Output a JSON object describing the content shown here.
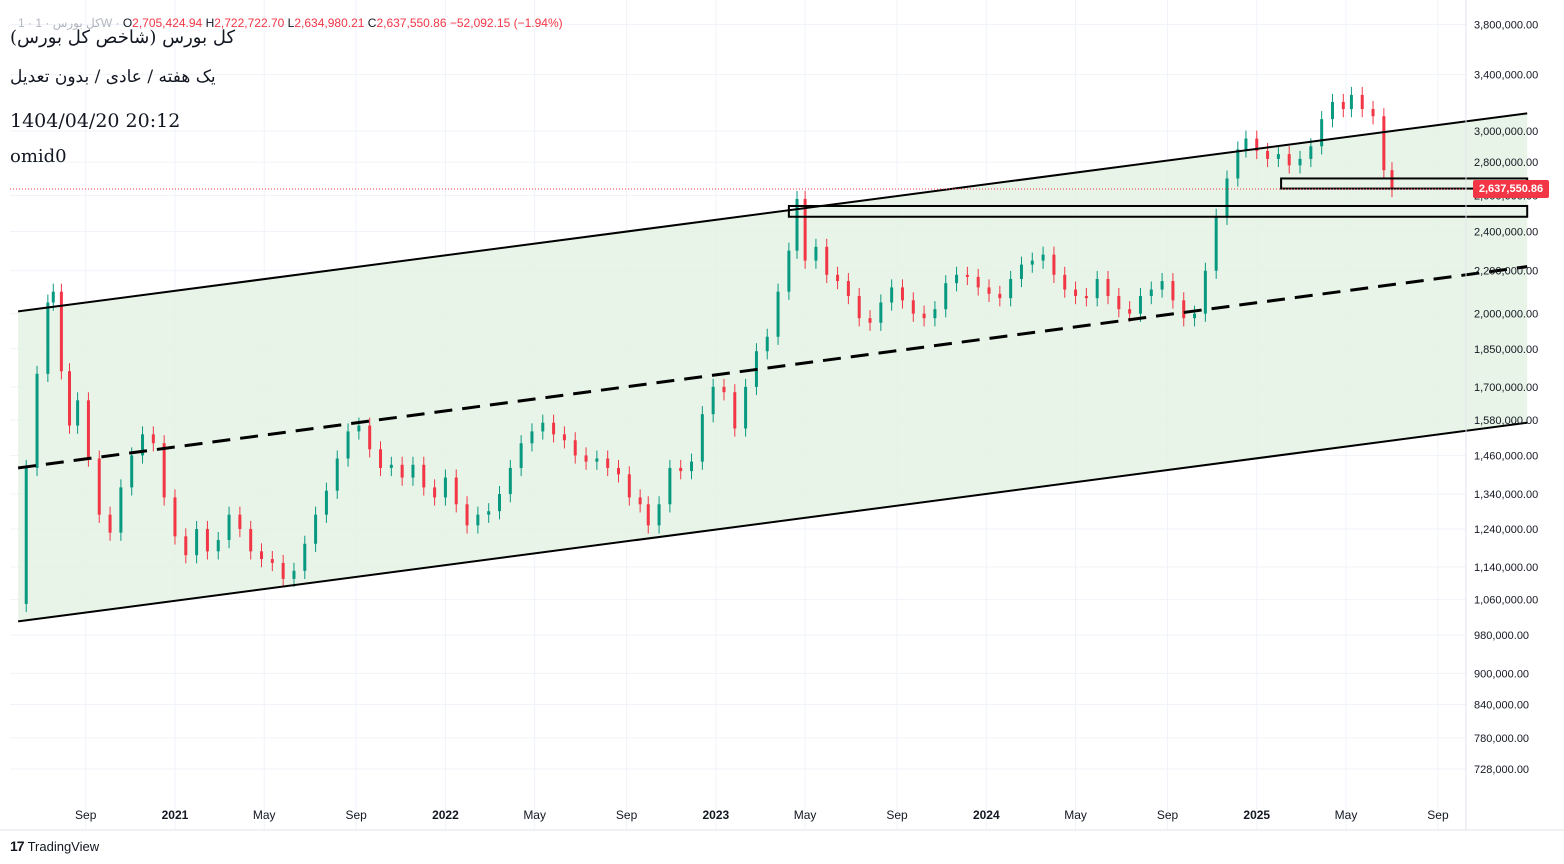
{
  "header": {
    "symbol_prefix": "1 · کل بورس · 1W ·",
    "o_label": "O",
    "o_value": "2,705,424.94",
    "h_label": "H",
    "h_value": "2,722,722.70",
    "l_label": "L",
    "l_value": "2,634,980.21",
    "c_label": "C",
    "c_value": "2,637,550.86",
    "change": "−52,092.15 (−1.94%)"
  },
  "legend": {
    "title": "کل بورس (شاخص کل بورس)",
    "subtitle": "یک هفته / عادی / بدون تعدیل",
    "datetime": "1404/04/20 20:12",
    "author": "omid0"
  },
  "brand": {
    "name": "TradingView",
    "mark": "17"
  },
  "colors": {
    "up": "#089981",
    "down": "#f23645",
    "channel_fill": "#e3f2e3",
    "line": "#000000",
    "grid": "#f0f3fa",
    "text": "#131722"
  },
  "chart_data": {
    "type": "candlestick",
    "timeframe": "1W",
    "last_price": 2637550.86,
    "last_price_label": "2,637,550.86",
    "y_scale": "log",
    "y_ticks": [
      {
        "v": 3800000,
        "label": "3,800,000.00"
      },
      {
        "v": 3400000,
        "label": "3,400,000.00"
      },
      {
        "v": 3000000,
        "label": "3,000,000.00"
      },
      {
        "v": 2800000,
        "label": "2,800,000.00"
      },
      {
        "v": 2600000,
        "label": "2,600,000.00"
      },
      {
        "v": 2400000,
        "label": "2,400,000.00"
      },
      {
        "v": 2200000,
        "label": "2,200,000.00"
      },
      {
        "v": 2000000,
        "label": "2,000,000.00"
      },
      {
        "v": 1850000,
        "label": "1,850,000.00"
      },
      {
        "v": 1700000,
        "label": "1,700,000.00"
      },
      {
        "v": 1580000,
        "label": "1,580,000.00"
      },
      {
        "v": 1460000,
        "label": "1,460,000.00"
      },
      {
        "v": 1340000,
        "label": "1,340,000.00"
      },
      {
        "v": 1240000,
        "label": "1,240,000.00"
      },
      {
        "v": 1140000,
        "label": "1,140,000.00"
      },
      {
        "v": 1060000,
        "label": "1,060,000.00"
      },
      {
        "v": 980000,
        "label": "980,000.00"
      },
      {
        "v": 900000,
        "label": "900,000.00"
      },
      {
        "v": 840000,
        "label": "840,000.00"
      },
      {
        "v": 780000,
        "label": "780,000.00"
      },
      {
        "v": 728000,
        "label": "728,000.00"
      }
    ],
    "x_ticks": [
      {
        "t": 2020.67,
        "label": "Sep",
        "bold": false
      },
      {
        "t": 2021.0,
        "label": "2021",
        "bold": true
      },
      {
        "t": 2021.33,
        "label": "May",
        "bold": false
      },
      {
        "t": 2021.67,
        "label": "Sep",
        "bold": false
      },
      {
        "t": 2022.0,
        "label": "2022",
        "bold": true
      },
      {
        "t": 2022.33,
        "label": "May",
        "bold": false
      },
      {
        "t": 2022.67,
        "label": "Sep",
        "bold": false
      },
      {
        "t": 2023.0,
        "label": "2023",
        "bold": true
      },
      {
        "t": 2023.33,
        "label": "May",
        "bold": false
      },
      {
        "t": 2023.67,
        "label": "Sep",
        "bold": false
      },
      {
        "t": 2024.0,
        "label": "2024",
        "bold": true
      },
      {
        "t": 2024.33,
        "label": "May",
        "bold": false
      },
      {
        "t": 2024.67,
        "label": "Sep",
        "bold": false
      },
      {
        "t": 2025.0,
        "label": "2025",
        "bold": true
      },
      {
        "t": 2025.33,
        "label": "May",
        "bold": false
      },
      {
        "t": 2025.67,
        "label": "Sep",
        "bold": false
      }
    ],
    "x_range": [
      2020.39,
      2026.0
    ],
    "closes": [
      [
        2020.4,
        1050000
      ],
      [
        2020.45,
        1420000
      ],
      [
        2020.49,
        1750000
      ],
      [
        2020.53,
        2050000
      ],
      [
        2020.55,
        2100000
      ],
      [
        2020.58,
        1760000
      ],
      [
        2020.61,
        1560000
      ],
      [
        2020.64,
        1650000
      ],
      [
        2020.68,
        1450000
      ],
      [
        2020.72,
        1280000
      ],
      [
        2020.76,
        1230000
      ],
      [
        2020.8,
        1360000
      ],
      [
        2020.84,
        1460000
      ],
      [
        2020.88,
        1530000
      ],
      [
        2020.92,
        1500000
      ],
      [
        2020.96,
        1330000
      ],
      [
        2021.0,
        1220000
      ],
      [
        2021.04,
        1170000
      ],
      [
        2021.08,
        1240000
      ],
      [
        2021.12,
        1180000
      ],
      [
        2021.16,
        1210000
      ],
      [
        2021.2,
        1280000
      ],
      [
        2021.24,
        1240000
      ],
      [
        2021.28,
        1180000
      ],
      [
        2021.32,
        1160000
      ],
      [
        2021.36,
        1150000
      ],
      [
        2021.4,
        1110000
      ],
      [
        2021.44,
        1130000
      ],
      [
        2021.48,
        1200000
      ],
      [
        2021.52,
        1280000
      ],
      [
        2021.56,
        1350000
      ],
      [
        2021.6,
        1450000
      ],
      [
        2021.64,
        1540000
      ],
      [
        2021.68,
        1560000
      ],
      [
        2021.72,
        1480000
      ],
      [
        2021.76,
        1420000
      ],
      [
        2021.8,
        1430000
      ],
      [
        2021.84,
        1390000
      ],
      [
        2021.88,
        1430000
      ],
      [
        2021.92,
        1360000
      ],
      [
        2021.96,
        1330000
      ],
      [
        2022.0,
        1390000
      ],
      [
        2022.04,
        1310000
      ],
      [
        2022.08,
        1250000
      ],
      [
        2022.12,
        1280000
      ],
      [
        2022.16,
        1290000
      ],
      [
        2022.2,
        1340000
      ],
      [
        2022.24,
        1420000
      ],
      [
        2022.28,
        1500000
      ],
      [
        2022.32,
        1540000
      ],
      [
        2022.36,
        1570000
      ],
      [
        2022.4,
        1530000
      ],
      [
        2022.44,
        1510000
      ],
      [
        2022.48,
        1460000
      ],
      [
        2022.52,
        1440000
      ],
      [
        2022.56,
        1450000
      ],
      [
        2022.6,
        1420000
      ],
      [
        2022.64,
        1400000
      ],
      [
        2022.68,
        1330000
      ],
      [
        2022.72,
        1310000
      ],
      [
        2022.75,
        1250000
      ],
      [
        2022.79,
        1310000
      ],
      [
        2022.83,
        1420000
      ],
      [
        2022.87,
        1410000
      ],
      [
        2022.91,
        1440000
      ],
      [
        2022.95,
        1600000
      ],
      [
        2022.99,
        1700000
      ],
      [
        2023.03,
        1680000
      ],
      [
        2023.07,
        1550000
      ],
      [
        2023.11,
        1700000
      ],
      [
        2023.15,
        1840000
      ],
      [
        2023.19,
        1900000
      ],
      [
        2023.23,
        2100000
      ],
      [
        2023.27,
        2300000
      ],
      [
        2023.3,
        2580000
      ],
      [
        2023.33,
        2250000
      ],
      [
        2023.37,
        2320000
      ],
      [
        2023.41,
        2180000
      ],
      [
        2023.45,
        2150000
      ],
      [
        2023.49,
        2080000
      ],
      [
        2023.53,
        1980000
      ],
      [
        2023.57,
        1960000
      ],
      [
        2023.61,
        2050000
      ],
      [
        2023.65,
        2120000
      ],
      [
        2023.69,
        2060000
      ],
      [
        2023.73,
        2000000
      ],
      [
        2023.77,
        1980000
      ],
      [
        2023.81,
        2020000
      ],
      [
        2023.85,
        2140000
      ],
      [
        2023.89,
        2180000
      ],
      [
        2023.93,
        2170000
      ],
      [
        2023.97,
        2120000
      ],
      [
        2024.01,
        2090000
      ],
      [
        2024.05,
        2070000
      ],
      [
        2024.09,
        2160000
      ],
      [
        2024.13,
        2230000
      ],
      [
        2024.17,
        2250000
      ],
      [
        2024.21,
        2280000
      ],
      [
        2024.25,
        2180000
      ],
      [
        2024.29,
        2110000
      ],
      [
        2024.33,
        2080000
      ],
      [
        2024.37,
        2070000
      ],
      [
        2024.41,
        2160000
      ],
      [
        2024.45,
        2080000
      ],
      [
        2024.49,
        2020000
      ],
      [
        2024.53,
        2000000
      ],
      [
        2024.57,
        2080000
      ],
      [
        2024.61,
        2110000
      ],
      [
        2024.65,
        2150000
      ],
      [
        2024.69,
        2060000
      ],
      [
        2024.73,
        1980000
      ],
      [
        2024.77,
        2000000
      ],
      [
        2024.81,
        2200000
      ],
      [
        2024.85,
        2480000
      ],
      [
        2024.89,
        2700000
      ],
      [
        2024.93,
        2880000
      ],
      [
        2024.96,
        2950000
      ],
      [
        2025.0,
        2870000
      ],
      [
        2025.04,
        2820000
      ],
      [
        2025.08,
        2850000
      ],
      [
        2025.12,
        2780000
      ],
      [
        2025.16,
        2820000
      ],
      [
        2025.2,
        2900000
      ],
      [
        2025.24,
        3080000
      ],
      [
        2025.28,
        3200000
      ],
      [
        2025.32,
        3150000
      ],
      [
        2025.35,
        3250000
      ],
      [
        2025.39,
        3150000
      ],
      [
        2025.43,
        3100000
      ],
      [
        2025.47,
        2750000
      ],
      [
        2025.5,
        2637550
      ]
    ],
    "channel": {
      "upper": [
        [
          2020.42,
          2010000
        ],
        [
          2026.0,
          3120000
        ]
      ],
      "lower": [
        [
          2020.42,
          1010000
        ],
        [
          2026.0,
          1570000
        ]
      ],
      "median": [
        [
          2020.42,
          1420000
        ],
        [
          2026.0,
          2220000
        ]
      ]
    },
    "zones": [
      {
        "t0": 2023.27,
        "t1": 2026.0,
        "top": 2540000,
        "bottom": 2480000
      },
      {
        "t0": 2025.09,
        "t1": 2026.0,
        "top": 2700000,
        "bottom": 2640000
      }
    ]
  }
}
